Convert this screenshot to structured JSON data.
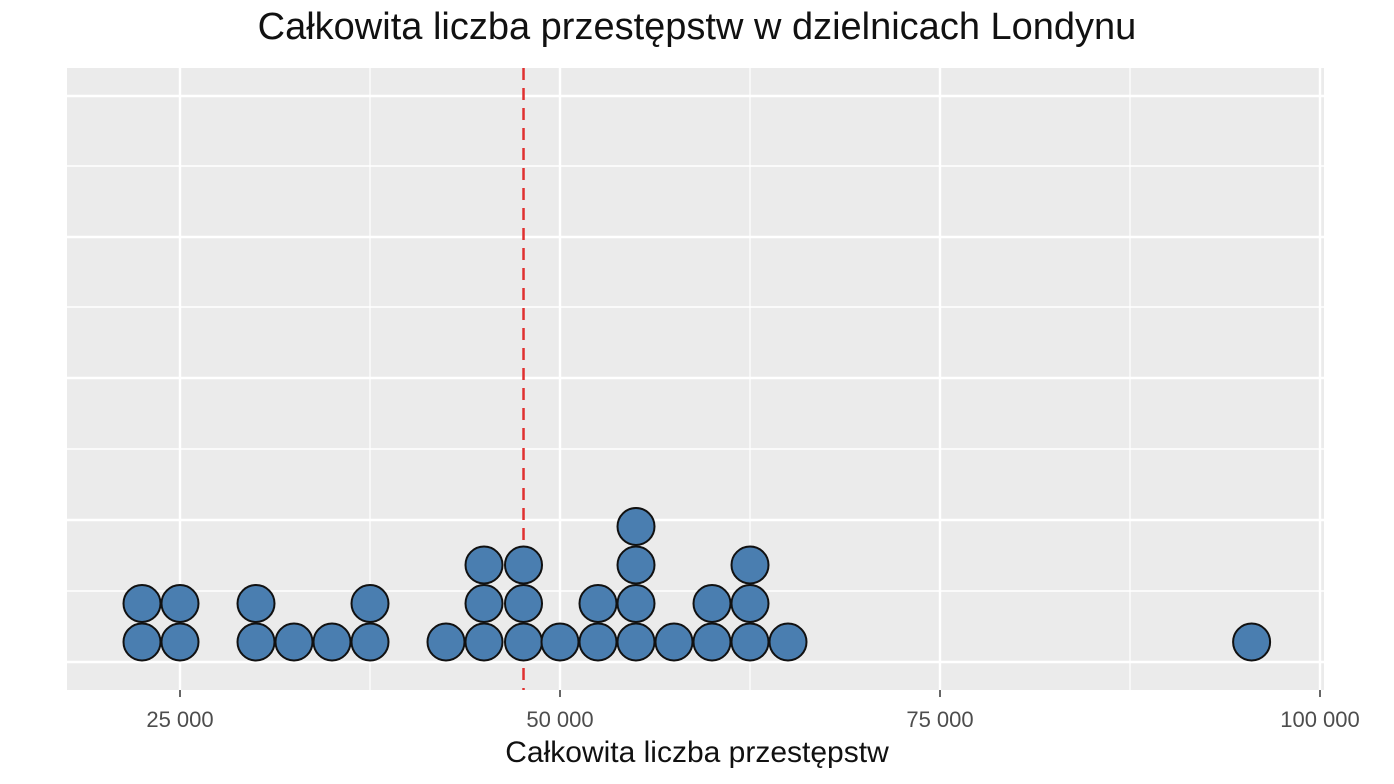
{
  "chart_data": {
    "type": "dotplot",
    "title": "Całkowita liczba przestępstw w dzielnicach Londynu",
    "xlabel": "Całkowita liczba przestępstw",
    "ylabel": "",
    "xlim": [
      17500,
      100000
    ],
    "x_ticks": [
      25000,
      50000,
      75000,
      100000
    ],
    "x_tick_labels": [
      "25 000",
      "50 000",
      "75 000",
      "100 000"
    ],
    "grid": true,
    "y_axis_labels": false,
    "reference_line": {
      "value": 47600,
      "style": "dashed",
      "color": "#e03030"
    },
    "stacks": [
      {
        "x": 22500,
        "count": 2
      },
      {
        "x": 25000,
        "count": 2
      },
      {
        "x": 30000,
        "count": 2
      },
      {
        "x": 32500,
        "count": 1
      },
      {
        "x": 35000,
        "count": 1
      },
      {
        "x": 37500,
        "count": 2
      },
      {
        "x": 42500,
        "count": 1
      },
      {
        "x": 45000,
        "count": 3
      },
      {
        "x": 47600,
        "count": 3
      },
      {
        "x": 50000,
        "count": 1
      },
      {
        "x": 52500,
        "count": 2
      },
      {
        "x": 55000,
        "count": 4
      },
      {
        "x": 57500,
        "count": 1
      },
      {
        "x": 60000,
        "count": 2
      },
      {
        "x": 62500,
        "count": 3
      },
      {
        "x": 65000,
        "count": 1
      },
      {
        "x": 95500,
        "count": 1
      }
    ],
    "colors": {
      "dot": "#4a7eb0",
      "panel": "#ebebeb",
      "grid": "#ffffff",
      "reference": "#e03030"
    }
  }
}
